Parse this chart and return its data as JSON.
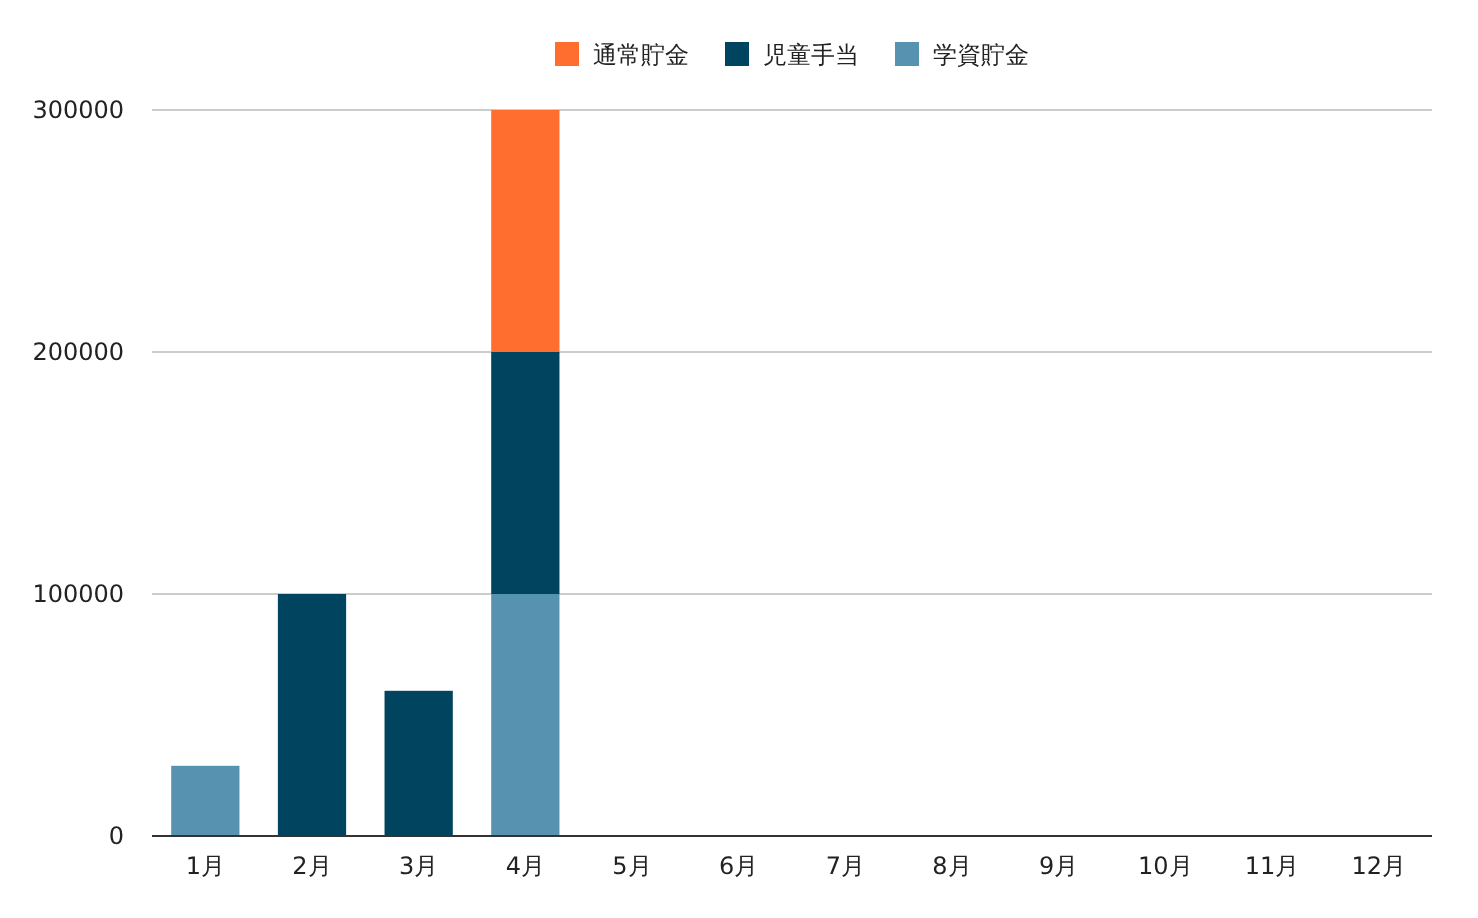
{
  "chart_data": {
    "type": "bar",
    "stacked": true,
    "legend": "top",
    "grid": "y",
    "categories": [
      "1月",
      "2月",
      "3月",
      "4月",
      "5月",
      "6月",
      "7月",
      "8月",
      "9月",
      "10月",
      "11月",
      "12月"
    ],
    "series": [
      {
        "name": "学資貯金",
        "color": "#5792b0",
        "values": [
          29000,
          null,
          null,
          100000,
          null,
          null,
          null,
          null,
          null,
          null,
          null,
          null
        ]
      },
      {
        "name": "児童手当",
        "color": "#00445f",
        "values": [
          null,
          100000,
          60000,
          100000,
          null,
          null,
          null,
          null,
          null,
          null,
          null,
          null
        ]
      },
      {
        "name": "通常貯金",
        "color": "#ff6d2f",
        "values": [
          null,
          null,
          null,
          100000,
          null,
          null,
          null,
          null,
          null,
          null,
          null,
          null
        ]
      }
    ],
    "ylim": [
      0,
      300000
    ],
    "yticks": [
      0,
      100000,
      200000,
      300000
    ]
  }
}
